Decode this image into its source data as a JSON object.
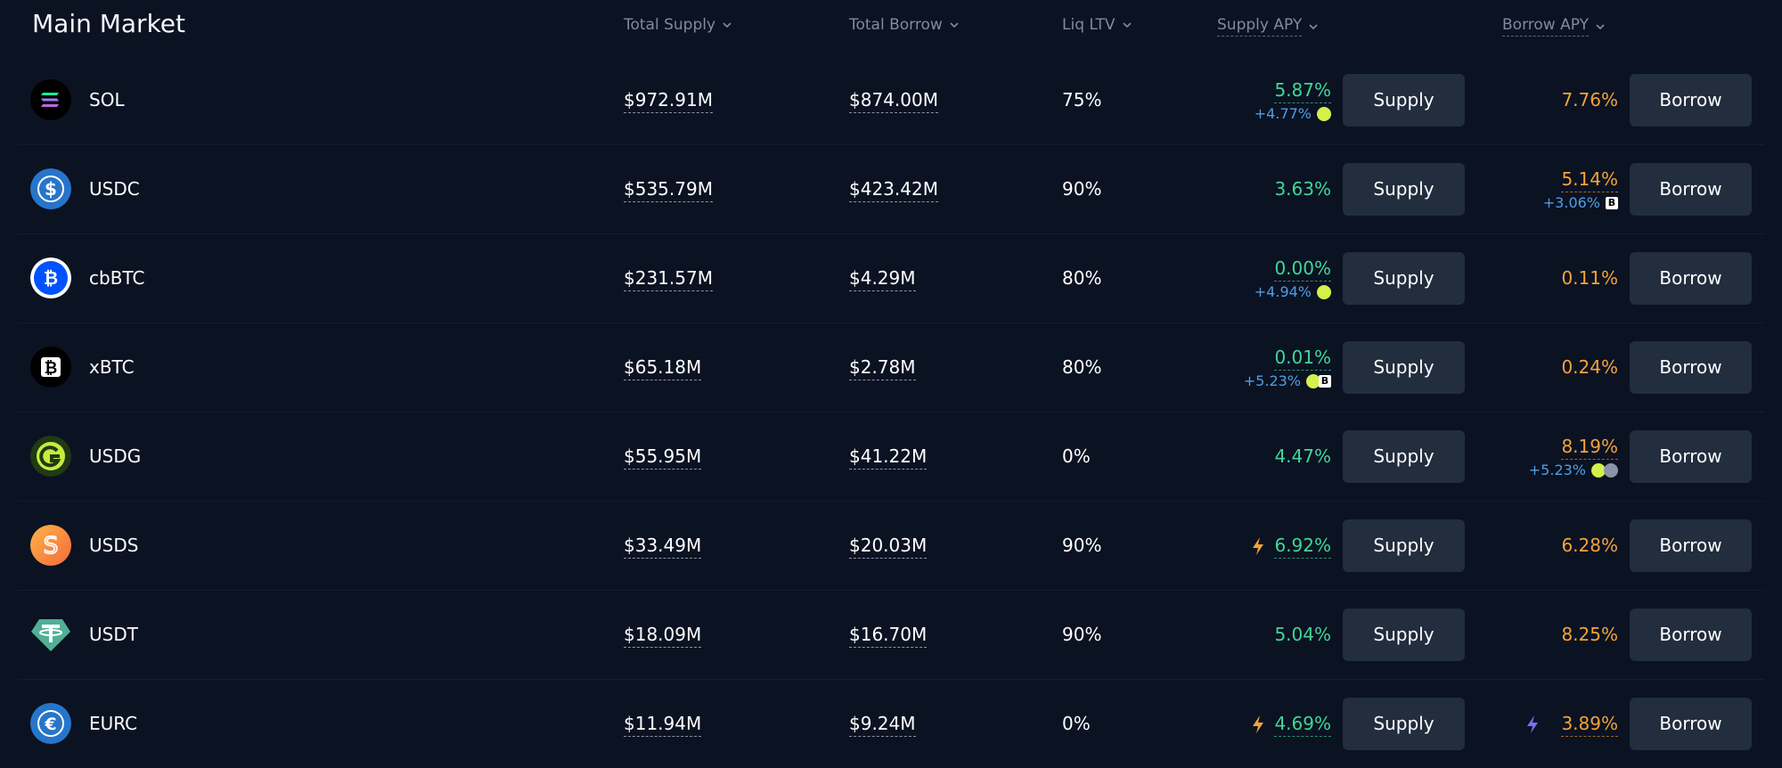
{
  "header": {
    "title": "Main Market",
    "columns": {
      "total_supply": "Total Supply",
      "total_borrow": "Total Borrow",
      "liq_ltv": "Liq LTV",
      "supply_apy": "Supply APY",
      "borrow_apy": "Borrow APY"
    }
  },
  "buttons": {
    "supply": "Supply",
    "borrow": "Borrow"
  },
  "rows": [
    {
      "symbol": "SOL",
      "icon": "sol-icon",
      "total_supply": "$972.91M",
      "total_borrow": "$874.00M",
      "liq_ltv": "75%",
      "supply_apy": "5.87%",
      "supply_sub": "+4.77%",
      "borrow_apy": "7.76%",
      "borrow_sub": ""
    },
    {
      "symbol": "USDC",
      "icon": "usdc-icon",
      "total_supply": "$535.79M",
      "total_borrow": "$423.42M",
      "liq_ltv": "90%",
      "supply_apy": "3.63%",
      "supply_sub": "",
      "borrow_apy": "5.14%",
      "borrow_sub": "+3.06%"
    },
    {
      "symbol": "cbBTC",
      "icon": "cbbtc-icon",
      "total_supply": "$231.57M",
      "total_borrow": "$4.29M",
      "liq_ltv": "80%",
      "supply_apy": "0.00%",
      "supply_sub": "+4.94%",
      "borrow_apy": "0.11%",
      "borrow_sub": ""
    },
    {
      "symbol": "xBTC",
      "icon": "xbtc-icon",
      "total_supply": "$65.18M",
      "total_borrow": "$2.78M",
      "liq_ltv": "80%",
      "supply_apy": "0.01%",
      "supply_sub": "+5.23%",
      "borrow_apy": "0.24%",
      "borrow_sub": ""
    },
    {
      "symbol": "USDG",
      "icon": "usdg-icon",
      "total_supply": "$55.95M",
      "total_borrow": "$41.22M",
      "liq_ltv": "0%",
      "supply_apy": "4.47%",
      "supply_sub": "",
      "borrow_apy": "8.19%",
      "borrow_sub": "+5.23%"
    },
    {
      "symbol": "USDS",
      "icon": "usds-icon",
      "total_supply": "$33.49M",
      "total_borrow": "$20.03M",
      "liq_ltv": "90%",
      "supply_apy": "6.92%",
      "supply_sub": "",
      "borrow_apy": "6.28%",
      "borrow_sub": ""
    },
    {
      "symbol": "USDT",
      "icon": "usdt-icon",
      "total_supply": "$18.09M",
      "total_borrow": "$16.70M",
      "liq_ltv": "90%",
      "supply_apy": "5.04%",
      "supply_sub": "",
      "borrow_apy": "8.25%",
      "borrow_sub": ""
    },
    {
      "symbol": "EURC",
      "icon": "eurc-icon",
      "total_supply": "$11.94M",
      "total_borrow": "$9.24M",
      "liq_ltv": "0%",
      "supply_apy": "4.69%",
      "supply_sub": "",
      "borrow_apy": "3.89%",
      "borrow_sub": ""
    }
  ],
  "colors": {
    "background": "#0b1222",
    "supply_apy": "#3fd796",
    "borrow_apy": "#f4a338",
    "reward": "#4e9ee6",
    "button": "#222d3e",
    "header_text": "#7f8aa3"
  }
}
